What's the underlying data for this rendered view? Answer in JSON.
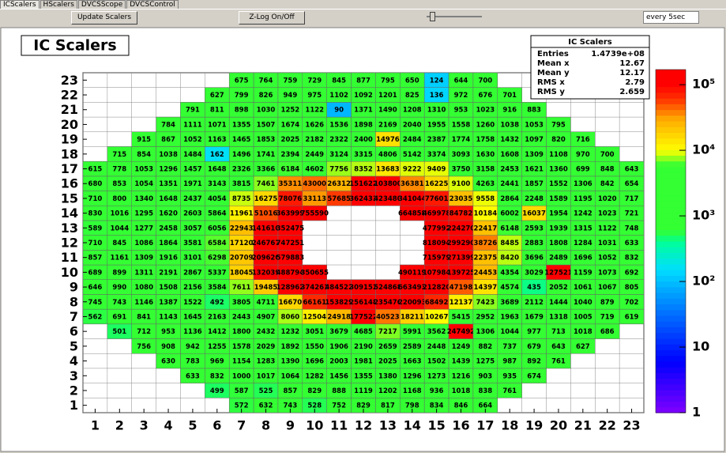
{
  "tabs": [
    "ICScalers",
    "HScalers",
    "DVCSScope",
    "DVCSControl"
  ],
  "toolbar": {
    "update_button": "Update Scalers",
    "zlog_button": "Z-Log On/Off",
    "interval": "every 5sec"
  },
  "chart_data": {
    "type": "heatmap",
    "title": "IC Scalers",
    "stats": {
      "title": "IC Scalers",
      "rows": [
        {
          "name": "Entries",
          "value": "1.4739e+08"
        },
        {
          "name": "Mean x",
          "value": "12.67"
        },
        {
          "name": "Mean y",
          "value": "12.17"
        },
        {
          "name": "RMS x",
          "value": "2.79"
        },
        {
          "name": "RMS y",
          "value": "2.659"
        }
      ]
    },
    "xlim": [
      0.5,
      23.5
    ],
    "ylim": [
      0.5,
      23.5
    ],
    "xticks": [
      1,
      2,
      3,
      4,
      5,
      6,
      7,
      8,
      9,
      10,
      11,
      12,
      13,
      14,
      15,
      16,
      17,
      18,
      19,
      20,
      21,
      22,
      23
    ],
    "yticks": [
      1,
      2,
      3,
      4,
      5,
      6,
      7,
      8,
      9,
      10,
      11,
      12,
      13,
      14,
      15,
      16,
      17,
      18,
      19,
      20,
      21,
      22,
      23
    ],
    "zlog": true,
    "zlim": [
      1,
      170000
    ],
    "zticks": [
      1,
      10,
      {
        "value": 100,
        "label": "10²"
      },
      {
        "value": 1000,
        "label": "10³"
      },
      {
        "value": 10000,
        "label": "10⁴"
      },
      {
        "value": 100000,
        "label": "10⁵"
      }
    ],
    "palette": [
      {
        "value": 1,
        "color": "#8000ff"
      },
      {
        "value": 6,
        "color": "#0000ff"
      },
      {
        "value": 60,
        "color": "#0099ff"
      },
      {
        "value": 150,
        "color": "#00ddff"
      },
      {
        "value": 400,
        "color": "#00ff99"
      },
      {
        "value": 600,
        "color": "#33ff33"
      },
      {
        "value": 6000,
        "color": "#33ff33"
      },
      {
        "value": 10000,
        "color": "#ffff00"
      },
      {
        "value": 30000,
        "color": "#ffaa00"
      },
      {
        "value": 60000,
        "color": "#ff3300"
      },
      {
        "value": 100000,
        "color": "#ff0000"
      }
    ],
    "z": [
      [
        null,
        null,
        null,
        null,
        null,
        null,
        572,
        632,
        743,
        528,
        752,
        829,
        817,
        798,
        834,
        846,
        664,
        null,
        null,
        null,
        null,
        null,
        null
      ],
      [
        null,
        null,
        null,
        null,
        null,
        499,
        587,
        525,
        857,
        829,
        888,
        1119,
        1202,
        1168,
        936,
        1018,
        838,
        761,
        null,
        null,
        null,
        null,
        null
      ],
      [
        null,
        null,
        null,
        null,
        633,
        832,
        1000,
        1017,
        1064,
        1282,
        1456,
        1355,
        1380,
        1296,
        1273,
        1216,
        903,
        935,
        674,
        null,
        null,
        null,
        null
      ],
      [
        null,
        null,
        null,
        630,
        783,
        969,
        1154,
        1283,
        1390,
        1696,
        2003,
        1981,
        2025,
        1663,
        1502,
        1439,
        1275,
        987,
        892,
        761,
        null,
        null,
        null
      ],
      [
        null,
        null,
        756,
        908,
        942,
        1255,
        1578,
        2029,
        1892,
        1550,
        1906,
        2190,
        2659,
        2589,
        2448,
        1249,
        882,
        737,
        679,
        643,
        627,
        null,
        null
      ],
      [
        null,
        501,
        712,
        953,
        1136,
        1412,
        1800,
        2432,
        1232,
        3051,
        3679,
        4685,
        7217,
        5991,
        3562,
        247492,
        1306,
        1044,
        977,
        713,
        1018,
        686,
        null
      ],
      [
        562,
        691,
        841,
        1143,
        1645,
        2163,
        2443,
        4907,
        8060,
        12504,
        24918,
        177522,
        40523,
        18211,
        10267,
        5415,
        2952,
        1963,
        1679,
        1318,
        1005,
        719,
        619
      ],
      [
        745,
        743,
        1146,
        1387,
        1522,
        492,
        3805,
        4711,
        16670,
        66161,
        153829,
        256148,
        235476,
        220093,
        68492,
        12137,
        7423,
        3689,
        2112,
        1444,
        1040,
        879,
        702
      ],
      [
        646,
        990,
        1080,
        1508,
        2156,
        3584,
        7611,
        19485,
        128962,
        374261,
        484522,
        309152,
        524868,
        663493,
        212820,
        47198,
        14397,
        4574,
        435,
        2052,
        1061,
        1067,
        805
      ],
      [
        689,
        899,
        1311,
        2191,
        2867,
        5337,
        18045,
        132039,
        488794,
        350655,
        null,
        null,
        null,
        490119,
        107984,
        139725,
        24453,
        4354,
        3029,
        127521,
        1159,
        1073,
        692
      ],
      [
        857,
        1161,
        1309,
        1916,
        3101,
        6298,
        20709,
        209620,
        579883,
        null,
        null,
        null,
        null,
        null,
        715979,
        271399,
        22375,
        8420,
        3696,
        2489,
        1696,
        1052,
        832
      ],
      [
        710,
        845,
        1086,
        1864,
        3581,
        6584,
        17120,
        246767,
        747251,
        null,
        null,
        null,
        null,
        null,
        818094,
        299290,
        38726,
        8485,
        2883,
        1808,
        1284,
        1031,
        633
      ],
      [
        589,
        1044,
        1277,
        2458,
        3057,
        6056,
        22943,
        141610,
        352475,
        null,
        null,
        null,
        null,
        null,
        477992,
        224270,
        22417,
        6148,
        2593,
        1939,
        1315,
        1122,
        748
      ],
      [
        830,
        1016,
        1295,
        1620,
        2603,
        5864,
        11961,
        51016,
        363999,
        755590,
        null,
        null,
        null,
        664858,
        469978,
        84782,
        10184,
        6002,
        16037,
        1954,
        1242,
        1023,
        721
      ],
      [
        710,
        800,
        1340,
        1648,
        2437,
        4054,
        8735,
        16275,
        78076,
        33113,
        57685,
        362433,
        423480,
        341044,
        77601,
        23035,
        9558,
        2864,
        2248,
        1589,
        1195,
        1020,
        717
      ],
      [
        680,
        853,
        1054,
        1351,
        1971,
        3143,
        3815,
        7461,
        35311,
        43000,
        26312,
        151622,
        103800,
        36381,
        16225,
        9100,
        4263,
        2441,
        1857,
        1552,
        1306,
        842,
        654
      ],
      [
        615,
        778,
        1053,
        1296,
        1457,
        1648,
        2326,
        3366,
        6184,
        4602,
        7756,
        8352,
        13683,
        9222,
        9409,
        3750,
        3158,
        2453,
        1621,
        1360,
        699,
        848,
        643
      ],
      [
        null,
        715,
        854,
        1038,
        1484,
        162,
        1496,
        1741,
        2394,
        2449,
        3124,
        3315,
        4806,
        5142,
        3374,
        3093,
        1630,
        1608,
        1309,
        1108,
        970,
        700,
        null
      ],
      [
        null,
        null,
        915,
        867,
        1052,
        1163,
        1465,
        1853,
        2025,
        2182,
        2322,
        2400,
        14976,
        2484,
        2387,
        1774,
        1758,
        1432,
        1097,
        820,
        716,
        null,
        null
      ],
      [
        null,
        null,
        null,
        784,
        1111,
        1071,
        1355,
        1507,
        1674,
        1626,
        1536,
        1898,
        2169,
        2040,
        1955,
        1558,
        1260,
        1038,
        1053,
        795,
        null,
        null,
        null
      ],
      [
        null,
        null,
        null,
        null,
        791,
        811,
        898,
        1030,
        1252,
        1122,
        90,
        1371,
        1490,
        1208,
        1310,
        953,
        1023,
        916,
        883,
        null,
        null,
        null,
        null
      ],
      [
        null,
        null,
        null,
        null,
        null,
        627,
        799,
        826,
        949,
        975,
        1102,
        1092,
        1201,
        825,
        136,
        972,
        676,
        701,
        null,
        null,
        null,
        null,
        null
      ],
      [
        null,
        null,
        null,
        null,
        null,
        null,
        675,
        764,
        759,
        729,
        845,
        877,
        795,
        650,
        124,
        644,
        700,
        null,
        null,
        null,
        null,
        null,
        null
      ]
    ]
  }
}
